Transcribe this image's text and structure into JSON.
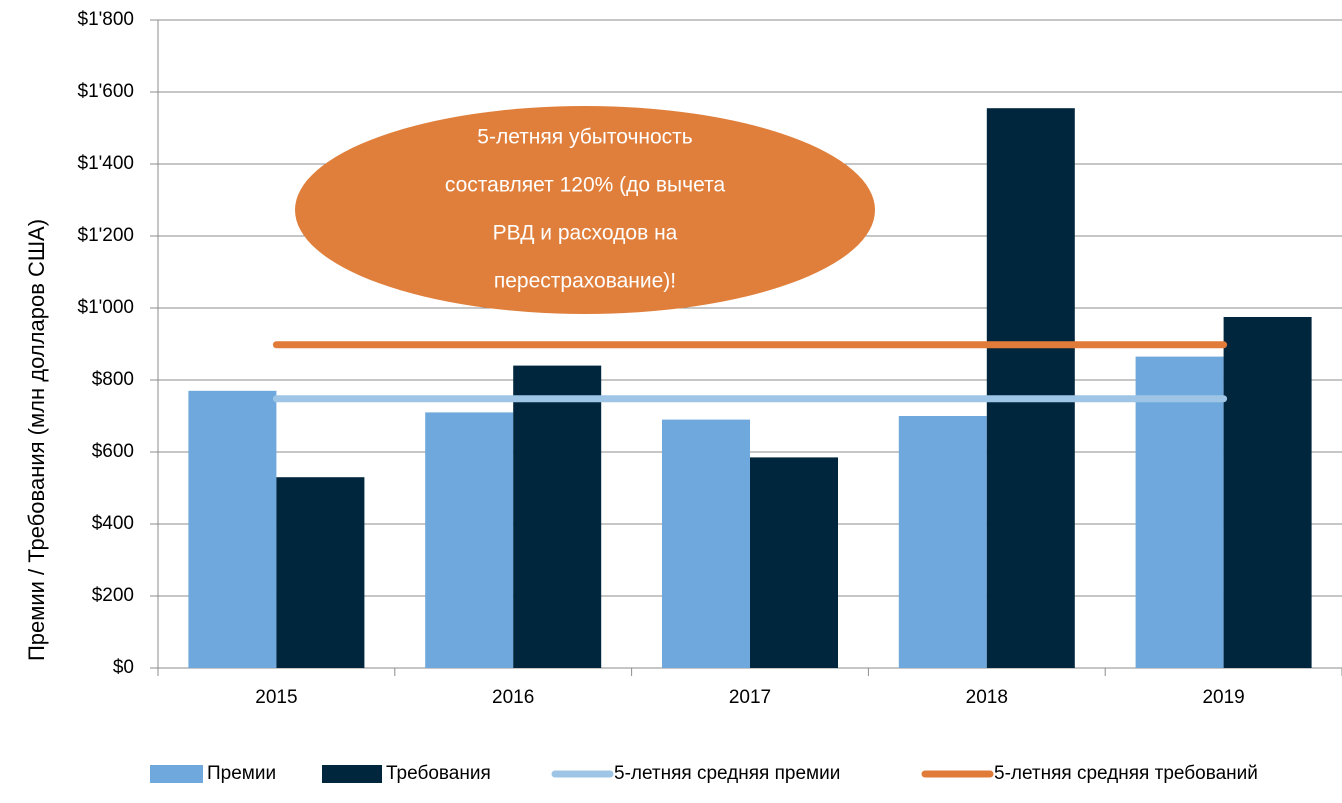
{
  "chart_data": {
    "type": "bar",
    "y_label": "Премии  / Требования (млн долларов США)",
    "categories": [
      "2015",
      "2016",
      "2017",
      "2018",
      "2019"
    ],
    "series": [
      {
        "name": "Премии",
        "color": "#6fa8dc",
        "values": [
          770,
          710,
          690,
          700,
          865
        ]
      },
      {
        "name": "Требования",
        "color": "#00263e",
        "values": [
          530,
          840,
          585,
          1555,
          975
        ]
      },
      {
        "name": "5-летняя средняя премии",
        "type": "line",
        "color": "#9ec5e5",
        "values": [
          748,
          748,
          748,
          748,
          748
        ]
      },
      {
        "name": "5-летняя средняя требований",
        "type": "line",
        "color": "#e07b39",
        "values": [
          898,
          898,
          898,
          898,
          898
        ]
      }
    ],
    "ylim": [
      0,
      1800
    ],
    "yticks": [
      {
        "value": 0,
        "label": "$0"
      },
      {
        "value": 200,
        "label": "$200"
      },
      {
        "value": 400,
        "label": "$400"
      },
      {
        "value": 600,
        "label": "$600"
      },
      {
        "value": 800,
        "label": "$800"
      },
      {
        "value": 1000,
        "label": "$1'000"
      },
      {
        "value": 1200,
        "label": "$1'200"
      },
      {
        "value": 1400,
        "label": "$1'400"
      },
      {
        "value": 1600,
        "label": "$1'600"
      },
      {
        "value": 1800,
        "label": "$1'800"
      }
    ],
    "grid": true,
    "legend": "bottom",
    "annotation": {
      "color": "#e07f3b",
      "lines": [
        "5-летняя убыточность",
        "составляет 120% (до вычета",
        "РВД и расходов на",
        "перестрахование)!"
      ]
    }
  }
}
